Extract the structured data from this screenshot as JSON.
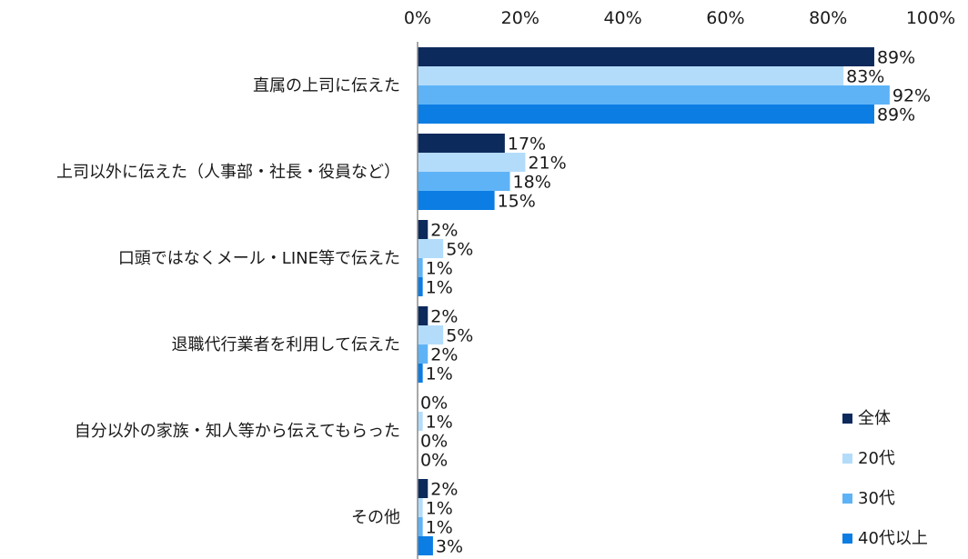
{
  "chart_data": {
    "type": "bar",
    "orientation": "horizontal",
    "xlim": [
      0,
      100
    ],
    "xticks": [
      "0%",
      "20%",
      "40%",
      "60%",
      "80%",
      "100%"
    ],
    "categories": [
      "直属の上司に伝えた",
      "上司以外に伝えた（人事部・社長・役員など）",
      "口頭ではなくメール・LINE等で伝えた",
      "退職代行業者を利用して伝えた",
      "自分以外の家族・知人等から伝えてもらった",
      "その他"
    ],
    "series": [
      {
        "name": "全体",
        "color": "#0d2a5c",
        "values": [
          89,
          17,
          2,
          2,
          0,
          2
        ]
      },
      {
        "name": "20代",
        "color": "#b3dcfb",
        "values": [
          83,
          21,
          5,
          5,
          1,
          1
        ]
      },
      {
        "name": "30代",
        "color": "#5eb3f7",
        "values": [
          92,
          18,
          1,
          2,
          0,
          1
        ]
      },
      {
        "name": "40代以上",
        "color": "#0b7de3",
        "values": [
          89,
          15,
          1,
          1,
          0,
          3
        ]
      }
    ],
    "value_suffix": "%",
    "legend_position": "bottom-right",
    "grid": false
  }
}
